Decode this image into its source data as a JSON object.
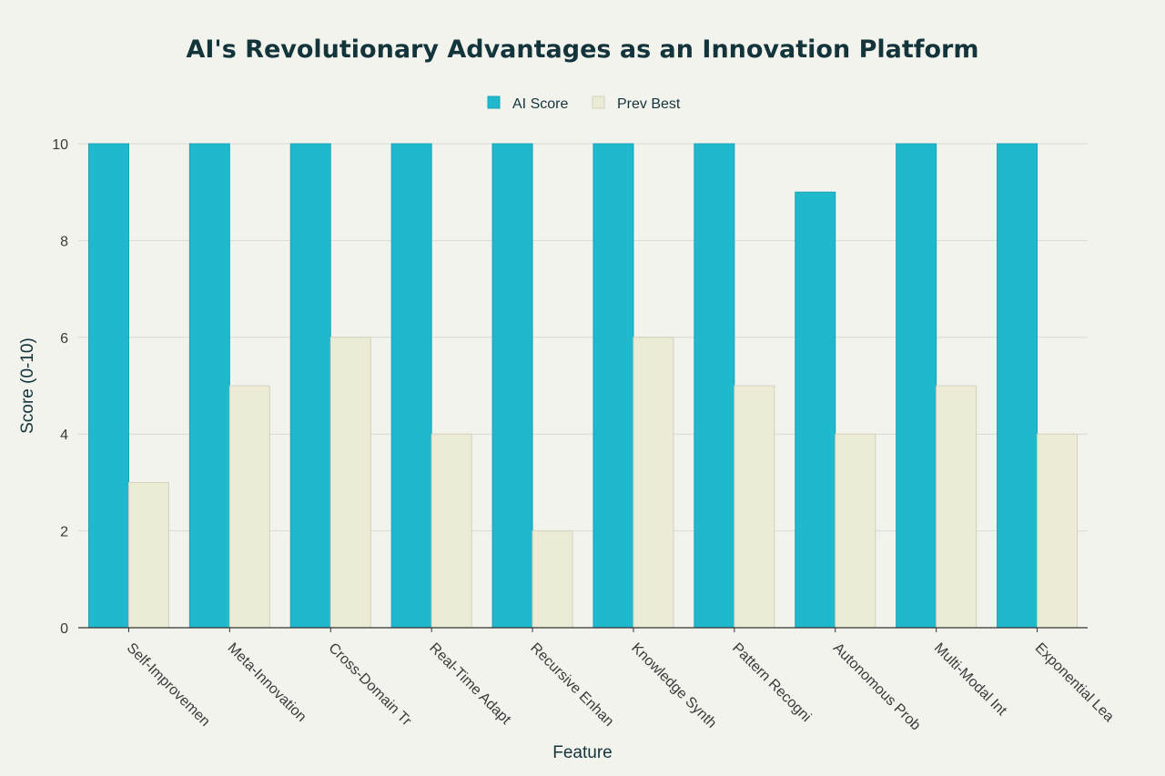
{
  "chart_data": {
    "type": "bar",
    "title": "AI's Revolutionary Advantages as an Innovation Platform",
    "xlabel": "Feature",
    "ylabel": "Score (0-10)",
    "ylim": [
      0,
      10
    ],
    "yticks": [
      0,
      2,
      4,
      6,
      8,
      10
    ],
    "grid": true,
    "legend_position": "top-center",
    "categories": [
      "Self-Improvemen",
      "Meta-Innovation",
      "Cross-Domain Tr",
      "Real-Time Adapt",
      "Recursive Enhan",
      "Knowledge Synth",
      "Pattern Recogni",
      "Autonomous Prob",
      "Multi-Modal Int",
      "Exponential Lea"
    ],
    "series": [
      {
        "name": "AI Score",
        "color": "#1fb8cd",
        "values": [
          10,
          10,
          10,
          10,
          10,
          10,
          10,
          9,
          10,
          10
        ]
      },
      {
        "name": "Prev Best",
        "color": "#ecebd5",
        "values": [
          3,
          5,
          6,
          4,
          2,
          6,
          5,
          4,
          5,
          4
        ]
      }
    ]
  }
}
